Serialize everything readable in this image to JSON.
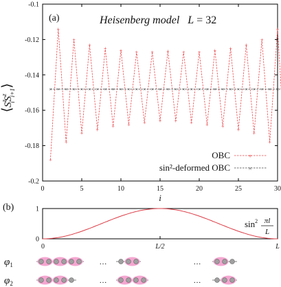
{
  "colors": {
    "obc": "#e8464a",
    "sin2_obc": "#444444",
    "sin_curve": "#dc3c46",
    "bond": "#f4a6d0",
    "site": "#a0a0a0",
    "axis": "#000000"
  },
  "chart_data": [
    {
      "type": "line",
      "panel_label": "(a)",
      "title_model": "Heisenberg model",
      "title_size_symbol": "L",
      "title_size_eq": "= 32",
      "xlabel": "i",
      "ylabel_symbol": "S",
      "ylabel_superscript": "z",
      "ylabel_sub_i": "i",
      "ylabel_sub_ip1": "i+1",
      "xlim": [
        0,
        30
      ],
      "ylim": [
        -0.2,
        -0.1
      ],
      "x_ticks": [
        "0",
        "5",
        "10",
        "15",
        "20",
        "25",
        "30"
      ],
      "y_ticks": [
        "-0.1",
        "-0.12",
        "-0.14",
        "-0.16",
        "-0.18",
        "-0.2"
      ],
      "legend_position": "bottom-right",
      "series": [
        {
          "name": "OBC",
          "x": [
            1,
            2,
            3,
            4,
            5,
            6,
            7,
            8,
            9,
            10,
            11,
            12,
            13,
            14,
            15,
            16,
            17,
            18,
            19,
            20,
            21,
            22,
            23,
            24,
            25,
            26,
            27,
            28,
            29,
            30,
            31
          ],
          "y": [
            -0.188,
            -0.114,
            -0.178,
            -0.12,
            -0.173,
            -0.123,
            -0.171,
            -0.125,
            -0.169,
            -0.126,
            -0.168,
            -0.127,
            -0.167,
            -0.127,
            -0.166,
            -0.1265,
            -0.166,
            -0.127,
            -0.167,
            -0.127,
            -0.168,
            -0.126,
            -0.169,
            -0.125,
            -0.171,
            -0.123,
            -0.173,
            -0.12,
            -0.178,
            -0.114,
            -0.188
          ]
        },
        {
          "name": "sin²-deformed OBC",
          "x": [
            1,
            2,
            3,
            4,
            5,
            6,
            7,
            8,
            9,
            10,
            11,
            12,
            13,
            14,
            15,
            16,
            17,
            18,
            19,
            20,
            21,
            22,
            23,
            24,
            25,
            26,
            27,
            28,
            29,
            30,
            31
          ],
          "y": [
            -0.148,
            -0.148,
            -0.148,
            -0.148,
            -0.148,
            -0.148,
            -0.148,
            -0.148,
            -0.148,
            -0.148,
            -0.148,
            -0.148,
            -0.148,
            -0.148,
            -0.148,
            -0.148,
            -0.148,
            -0.148,
            -0.148,
            -0.148,
            -0.148,
            -0.148,
            -0.148,
            -0.148,
            -0.148,
            -0.148,
            -0.148,
            -0.148,
            -0.148,
            -0.148,
            -0.148
          ]
        }
      ]
    },
    {
      "type": "line",
      "panel_label": "(b)",
      "y_ticks": [
        "0",
        "1"
      ],
      "x_tick_labels": [
        "0",
        "L/2",
        "L"
      ],
      "ylim": [
        0,
        1
      ],
      "curve_label_prefix": "sin",
      "curve_label_sup": "2",
      "curve_label_num": "πl",
      "curve_label_den": "L",
      "series": [
        {
          "name": "sin²(πl/L)",
          "formula": "sin^2(pi*l/L)",
          "domain": [
            0,
            1
          ]
        }
      ]
    }
  ],
  "chains": {
    "dots": "…",
    "rows": [
      {
        "label_symbol": "φ",
        "label_sub": "1",
        "segments": [
          [
            "b",
            "b",
            "b"
          ],
          [
            "l",
            "b"
          ],
          [
            "b",
            "l"
          ]
        ]
      },
      {
        "label_symbol": "φ",
        "label_sub": "2",
        "segments": [
          [
            "b",
            "b",
            "l"
          ],
          [
            "b",
            "b"
          ],
          [
            "l",
            "b"
          ]
        ]
      }
    ]
  }
}
